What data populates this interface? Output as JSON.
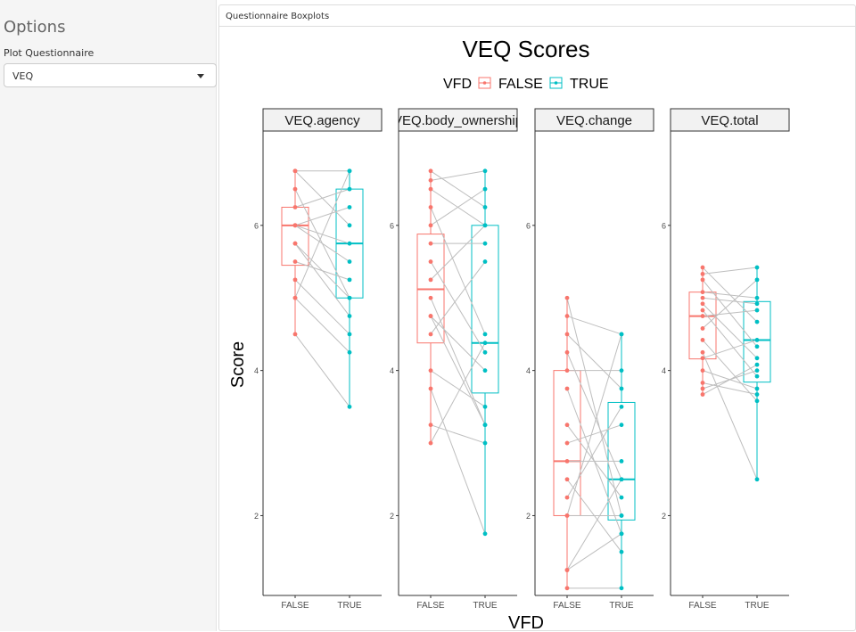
{
  "sidebar": {
    "title": "Options",
    "select_label": "Plot Questionnaire",
    "select_value": "VEQ"
  },
  "panel": {
    "title": "Questionnaire Boxplots"
  },
  "colors": {
    "false": "#F8766D",
    "true": "#00BFC4",
    "pair_line": "#BEBEBE"
  },
  "chart_data": {
    "type": "boxplot",
    "title": "VEQ Scores",
    "xlabel": "VFD",
    "ylabel": "Score",
    "legend": {
      "title": "VFD",
      "position": "top",
      "entries": [
        "FALSE",
        "TRUE"
      ]
    },
    "ylim": [
      0.9,
      7.3
    ],
    "yticks": [
      2,
      4,
      6
    ],
    "categories": [
      "FALSE",
      "TRUE"
    ],
    "grid": false,
    "facets": [
      {
        "label": "VEQ.agency",
        "boxes": {
          "FALSE": {
            "q1": 5.45,
            "median": 6.0,
            "q3": 6.25,
            "min": 4.5,
            "max": 6.75
          },
          "TRUE": {
            "q1": 5.0,
            "median": 5.75,
            "q3": 6.5,
            "min": 3.5,
            "max": 6.75
          }
        },
        "pairs": [
          [
            6.75,
            6.75
          ],
          [
            6.75,
            6.0
          ],
          [
            6.5,
            5.0
          ],
          [
            6.25,
            6.5
          ],
          [
            6.0,
            5.5
          ],
          [
            6.0,
            6.25
          ],
          [
            5.75,
            4.75
          ],
          [
            5.5,
            5.25
          ],
          [
            5.25,
            4.5
          ],
          [
            5.0,
            6.75
          ],
          [
            5.0,
            4.25
          ],
          [
            4.5,
            3.5
          ],
          [
            6.0,
            5.75
          ],
          [
            5.75,
            5.0
          ]
        ]
      },
      {
        "label": "VEQ.body_ownership",
        "boxes": {
          "FALSE": {
            "q1": 4.38,
            "median": 5.12,
            "q3": 5.88,
            "min": 3.0,
            "max": 6.75
          },
          "TRUE": {
            "q1": 3.69,
            "median": 4.38,
            "q3": 6.0,
            "min": 1.75,
            "max": 6.75
          }
        },
        "pairs": [
          [
            6.75,
            6.25
          ],
          [
            6.62,
            6.75
          ],
          [
            6.5,
            6.0
          ],
          [
            6.25,
            4.5
          ],
          [
            6.0,
            6.5
          ],
          [
            5.75,
            5.75
          ],
          [
            5.5,
            4.25
          ],
          [
            5.25,
            6.0
          ],
          [
            5.0,
            3.25
          ],
          [
            4.75,
            4.0
          ],
          [
            4.5,
            5.5
          ],
          [
            4.0,
            3.5
          ],
          [
            3.75,
            1.75
          ],
          [
            3.25,
            3.0
          ],
          [
            3.0,
            4.38
          ],
          [
            4.75,
            3.25
          ]
        ]
      },
      {
        "label": "VEQ.change",
        "boxes": {
          "FALSE": {
            "q1": 2.0,
            "median": 2.75,
            "q3": 4.0,
            "min": 1.0,
            "max": 5.0
          },
          "TRUE": {
            "q1": 1.94,
            "median": 2.5,
            "q3": 3.56,
            "min": 1.0,
            "max": 4.5
          }
        },
        "pairs": [
          [
            5.0,
            2.0
          ],
          [
            4.75,
            4.5
          ],
          [
            4.5,
            3.75
          ],
          [
            4.25,
            2.5
          ],
          [
            4.0,
            4.0
          ],
          [
            3.75,
            1.75
          ],
          [
            3.25,
            2.25
          ],
          [
            3.0,
            3.25
          ],
          [
            2.75,
            2.75
          ],
          [
            2.5,
            1.5
          ],
          [
            2.25,
            3.5
          ],
          [
            2.0,
            2.0
          ],
          [
            1.25,
            1.75
          ],
          [
            1.0,
            1.0
          ],
          [
            2.0,
            4.5
          ],
          [
            1.25,
            2.5
          ]
        ]
      },
      {
        "label": "VEQ.total",
        "boxes": {
          "FALSE": {
            "q1": 4.16,
            "median": 4.75,
            "q3": 5.08,
            "min": 3.67,
            "max": 5.42
          },
          "TRUE": {
            "q1": 3.84,
            "median": 4.42,
            "q3": 4.95,
            "min": 2.5,
            "max": 5.42
          }
        },
        "pairs": [
          [
            5.42,
            4.67
          ],
          [
            5.33,
            5.42
          ],
          [
            5.25,
            4.33
          ],
          [
            5.08,
            5.0
          ],
          [
            4.92,
            4.17
          ],
          [
            4.83,
            3.92
          ],
          [
            4.75,
            4.83
          ],
          [
            4.58,
            5.25
          ],
          [
            4.42,
            3.58
          ],
          [
            4.25,
            2.5
          ],
          [
            4.17,
            4.42
          ],
          [
            4.0,
            3.75
          ],
          [
            3.83,
            3.67
          ],
          [
            3.67,
            4.08
          ],
          [
            3.75,
            4.0
          ],
          [
            5.0,
            4.92
          ]
        ]
      }
    ]
  }
}
